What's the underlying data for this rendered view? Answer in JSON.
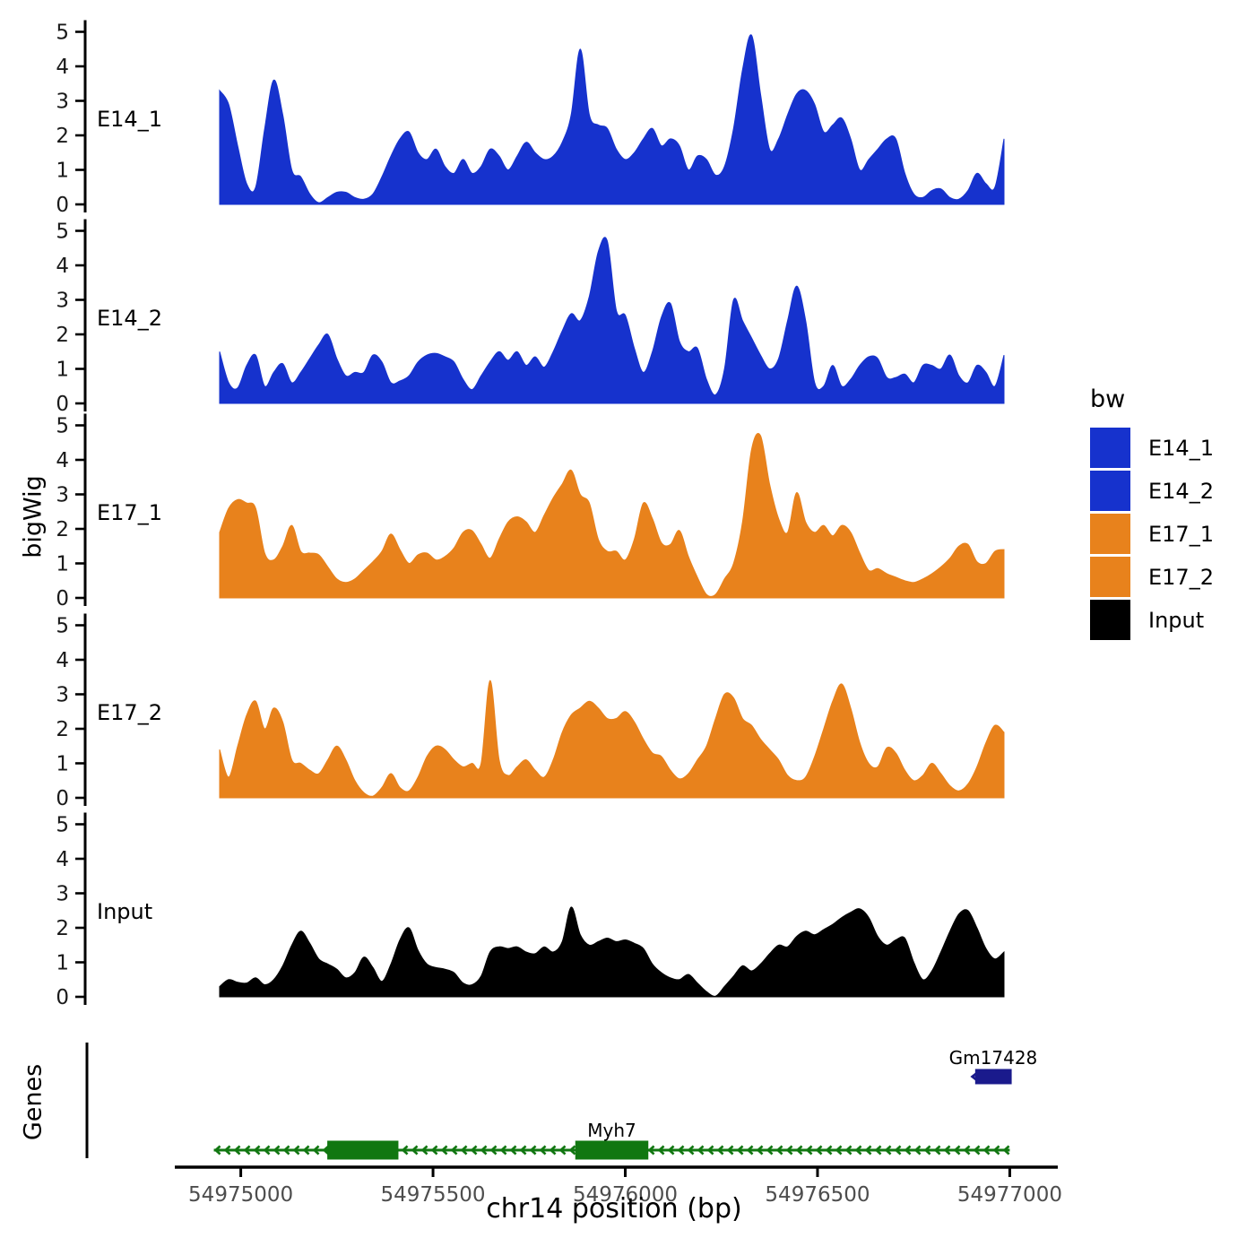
{
  "y_axis_label": "bigWig",
  "genes_panel_label": "Genes",
  "x_axis": {
    "title": "chr14 position (bp)",
    "tick_labels": [
      "54975000",
      "54975500",
      "54976000",
      "54976500",
      "54977000"
    ]
  },
  "legend": {
    "title": "bw",
    "entries": [
      {
        "label": "E14_1",
        "color": "#1632CD"
      },
      {
        "label": "E14_2",
        "color": "#1632CD"
      },
      {
        "label": "E17_1",
        "color": "#E8821C"
      },
      {
        "label": "E17_2",
        "color": "#E8821C"
      },
      {
        "label": "Input",
        "color": "#000000"
      }
    ]
  },
  "colors": {
    "axis_line": "#000000",
    "y_tick_text": "#1a1a1a",
    "x_tick_text": "#4d4d4d",
    "gene_green": "#117711",
    "gene_navy": "#1A1A8C"
  },
  "chart_data": {
    "type": "area",
    "layout": "stacked_tracks",
    "title": "",
    "xlabel": "chr14 position (bp)",
    "ylabel": "bigWig",
    "ylim": [
      0,
      5
    ],
    "yticks": [
      0,
      1,
      2,
      3,
      4,
      5
    ],
    "x_range_bp": [
      54974945,
      54976985
    ],
    "xticks": [
      54975000,
      54975500,
      54976000,
      54976500,
      54977000
    ],
    "tracks": [
      {
        "name": "E14_1",
        "color": "#1632CD",
        "values": [
          3.3,
          2.9,
          1.7,
          0.6,
          0.5,
          2.2,
          3.6,
          2.6,
          1.0,
          0.8,
          0.3,
          0.05,
          0.2,
          0.35,
          0.35,
          0.2,
          0.15,
          0.3,
          0.8,
          1.4,
          1.9,
          2.1,
          1.5,
          1.3,
          1.6,
          1.1,
          0.9,
          1.3,
          0.9,
          1.1,
          1.6,
          1.4,
          1.0,
          1.4,
          1.8,
          1.5,
          1.3,
          1.4,
          1.8,
          2.6,
          4.5,
          2.6,
          2.3,
          2.2,
          1.6,
          1.3,
          1.5,
          1.9,
          2.2,
          1.7,
          1.9,
          1.7,
          1.0,
          1.4,
          1.3,
          0.85,
          1.1,
          2.2,
          3.9,
          4.9,
          3.2,
          1.6,
          1.9,
          2.6,
          3.2,
          3.3,
          2.9,
          2.1,
          2.3,
          2.5,
          1.9,
          1.0,
          1.3,
          1.6,
          1.9,
          1.9,
          0.9,
          0.3,
          0.2,
          0.4,
          0.45,
          0.2,
          0.15,
          0.4,
          0.9,
          0.6,
          0.5,
          1.9
        ]
      },
      {
        "name": "E14_2",
        "color": "#1632CD",
        "values": [
          1.5,
          0.6,
          0.45,
          1.1,
          1.4,
          0.5,
          0.9,
          1.15,
          0.6,
          0.9,
          1.3,
          1.7,
          2.0,
          1.3,
          0.8,
          0.9,
          0.9,
          1.4,
          1.2,
          0.6,
          0.65,
          0.8,
          1.2,
          1.4,
          1.45,
          1.35,
          1.2,
          0.7,
          0.4,
          0.8,
          1.2,
          1.5,
          1.25,
          1.5,
          1.1,
          1.35,
          1.05,
          1.5,
          2.1,
          2.6,
          2.4,
          3.1,
          4.4,
          4.7,
          2.7,
          2.55,
          1.6,
          0.9,
          1.5,
          2.5,
          2.9,
          1.8,
          1.5,
          1.6,
          0.7,
          0.25,
          1.0,
          3.0,
          2.4,
          1.9,
          1.4,
          1.0,
          1.3,
          2.4,
          3.4,
          2.4,
          0.6,
          0.5,
          1.1,
          0.5,
          0.7,
          1.1,
          1.35,
          1.3,
          0.75,
          0.75,
          0.85,
          0.6,
          1.1,
          1.1,
          1.0,
          1.4,
          0.8,
          0.6,
          1.1,
          0.9,
          0.5,
          1.4
        ]
      },
      {
        "name": "E17_1",
        "color": "#E8821C",
        "values": [
          1.9,
          2.6,
          2.85,
          2.75,
          2.6,
          1.3,
          1.1,
          1.5,
          2.1,
          1.35,
          1.3,
          1.25,
          0.9,
          0.55,
          0.45,
          0.55,
          0.8,
          1.05,
          1.35,
          1.85,
          1.4,
          1.0,
          1.25,
          1.3,
          1.1,
          1.2,
          1.45,
          1.9,
          1.95,
          1.55,
          1.15,
          1.7,
          2.2,
          2.35,
          2.2,
          1.9,
          2.4,
          2.9,
          3.3,
          3.7,
          3.0,
          2.75,
          1.7,
          1.35,
          1.35,
          1.1,
          1.7,
          2.75,
          2.3,
          1.6,
          1.55,
          1.95,
          1.2,
          0.6,
          0.1,
          0.1,
          0.55,
          1.0,
          2.2,
          4.3,
          4.7,
          3.3,
          2.3,
          1.9,
          3.05,
          2.2,
          1.9,
          2.1,
          1.8,
          2.1,
          1.9,
          1.3,
          0.8,
          0.85,
          0.7,
          0.6,
          0.5,
          0.45,
          0.55,
          0.7,
          0.9,
          1.15,
          1.5,
          1.55,
          1.05,
          1.0,
          1.35,
          1.4
        ]
      },
      {
        "name": "E17_2",
        "color": "#E8821C",
        "values": [
          1.4,
          0.6,
          1.5,
          2.4,
          2.8,
          2.0,
          2.6,
          2.2,
          1.1,
          1.0,
          0.8,
          0.7,
          1.1,
          1.5,
          1.1,
          0.5,
          0.15,
          0.05,
          0.3,
          0.7,
          0.3,
          0.2,
          0.6,
          1.2,
          1.5,
          1.4,
          1.1,
          0.9,
          1.0,
          1.0,
          3.4,
          1.1,
          0.65,
          0.9,
          1.1,
          0.8,
          0.6,
          1.1,
          1.9,
          2.4,
          2.6,
          2.8,
          2.6,
          2.3,
          2.3,
          2.5,
          2.2,
          1.7,
          1.3,
          1.2,
          0.8,
          0.55,
          0.7,
          1.1,
          1.5,
          2.3,
          3.0,
          2.9,
          2.3,
          2.1,
          1.7,
          1.4,
          1.1,
          0.65,
          0.5,
          0.6,
          1.2,
          2.0,
          2.8,
          3.3,
          2.6,
          1.6,
          1.0,
          0.9,
          1.45,
          1.3,
          0.8,
          0.5,
          0.65,
          1.0,
          0.7,
          0.35,
          0.2,
          0.4,
          0.9,
          1.6,
          2.1,
          1.9
        ]
      },
      {
        "name": "Input",
        "color": "#000000",
        "values": [
          0.3,
          0.5,
          0.42,
          0.4,
          0.55,
          0.35,
          0.5,
          0.9,
          1.5,
          1.9,
          1.55,
          1.1,
          0.95,
          0.8,
          0.55,
          0.7,
          1.15,
          0.85,
          0.45,
          0.95,
          1.65,
          2.0,
          1.35,
          0.95,
          0.85,
          0.8,
          0.7,
          0.4,
          0.35,
          0.6,
          1.3,
          1.45,
          1.4,
          1.45,
          1.3,
          1.25,
          1.45,
          1.3,
          1.6,
          2.6,
          1.8,
          1.5,
          1.6,
          1.7,
          1.6,
          1.65,
          1.55,
          1.4,
          0.95,
          0.7,
          0.55,
          0.5,
          0.65,
          0.4,
          0.15,
          0.02,
          0.3,
          0.6,
          0.9,
          0.75,
          0.95,
          1.25,
          1.5,
          1.45,
          1.75,
          1.9,
          1.8,
          1.95,
          2.1,
          2.3,
          2.45,
          2.55,
          2.3,
          1.75,
          1.5,
          1.65,
          1.7,
          1.0,
          0.5,
          0.75,
          1.3,
          1.9,
          2.4,
          2.5,
          2.0,
          1.4,
          1.1,
          1.3
        ]
      }
    ],
    "genes": [
      {
        "name": "Myh7",
        "style": "exon-line",
        "color": "#117711",
        "strand": "-",
        "start": 54974930,
        "end": 54977000,
        "exons": [
          [
            54975225,
            54975410
          ],
          [
            54975870,
            54976060
          ]
        ],
        "label_bp": 54975965
      },
      {
        "name": "Gm17428",
        "style": "box",
        "color": "#1A1A8C",
        "strand": "-",
        "start": 54976910,
        "end": 54977005,
        "label_bp": 54976957
      }
    ]
  }
}
